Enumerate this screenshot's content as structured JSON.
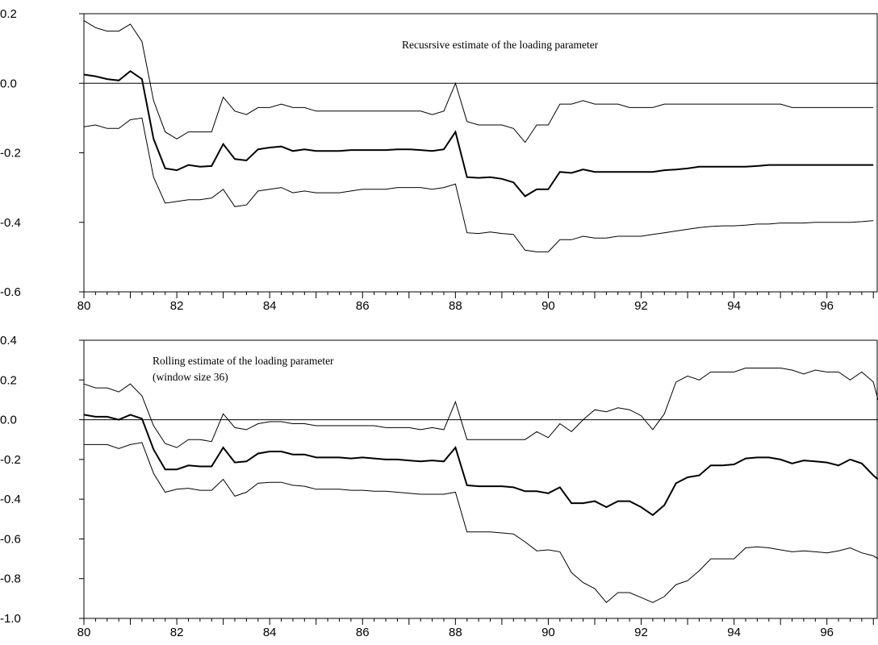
{
  "chart_data": [
    {
      "type": "line",
      "annotation_lines": [
        "Recusrsive estimate of the loading parameter"
      ],
      "xlim": [
        80,
        97.1
      ],
      "ylim": [
        -0.6,
        0.2
      ],
      "xticks": [
        "80",
        "82",
        "84",
        "86",
        "88",
        "90",
        "92",
        "94",
        "96"
      ],
      "yticks": [
        "0.2",
        "0.0",
        "-0.2",
        "-0.4",
        "-0.6"
      ],
      "reference_line": 0.0,
      "x": [
        80.0,
        80.25,
        80.5,
        80.75,
        81.0,
        81.25,
        81.5,
        81.75,
        82.0,
        82.25,
        82.5,
        82.75,
        83.0,
        83.25,
        83.5,
        83.75,
        84.0,
        84.25,
        84.5,
        84.75,
        85.0,
        85.25,
        85.5,
        85.75,
        86.0,
        86.25,
        86.5,
        86.75,
        87.0,
        87.25,
        87.5,
        87.75,
        88.0,
        88.25,
        88.5,
        88.75,
        89.0,
        89.25,
        89.5,
        89.75,
        90.0,
        90.25,
        90.5,
        90.75,
        91.0,
        91.25,
        91.5,
        91.75,
        92.0,
        92.25,
        92.5,
        92.75,
        93.0,
        93.25,
        93.5,
        93.75,
        94.0,
        94.25,
        94.5,
        94.75,
        95.0,
        95.25,
        95.5,
        95.75,
        96.0,
        96.25,
        96.5,
        96.75,
        97.0
      ],
      "series": [
        {
          "values": [
            0.18,
            0.16,
            0.15,
            0.15,
            0.17,
            0.12,
            -0.05,
            -0.14,
            -0.16,
            -0.14,
            -0.14,
            -0.14,
            -0.04,
            -0.08,
            -0.09,
            -0.07,
            -0.07,
            -0.06,
            -0.07,
            -0.07,
            -0.08,
            -0.08,
            -0.08,
            -0.08,
            -0.08,
            -0.08,
            -0.08,
            -0.08,
            -0.08,
            -0.08,
            -0.09,
            -0.08,
            0.0,
            -0.11,
            -0.12,
            -0.12,
            -0.12,
            -0.13,
            -0.17,
            -0.12,
            -0.12,
            -0.06,
            -0.06,
            -0.05,
            -0.06,
            -0.06,
            -0.06,
            -0.07,
            -0.07,
            -0.07,
            -0.06,
            -0.06,
            -0.06,
            -0.06,
            -0.06,
            -0.06,
            -0.06,
            -0.06,
            -0.06,
            -0.06,
            -0.06,
            -0.07,
            -0.07,
            -0.07,
            -0.07,
            -0.07,
            -0.07,
            -0.07,
            -0.07
          ],
          "width": 1.0
        },
        {
          "values": [
            0.025,
            0.02,
            0.012,
            0.008,
            0.035,
            0.012,
            -0.16,
            -0.245,
            -0.25,
            -0.235,
            -0.24,
            -0.238,
            -0.175,
            -0.218,
            -0.222,
            -0.19,
            -0.185,
            -0.182,
            -0.195,
            -0.19,
            -0.195,
            -0.195,
            -0.195,
            -0.192,
            -0.192,
            -0.192,
            -0.192,
            -0.19,
            -0.19,
            -0.192,
            -0.195,
            -0.19,
            -0.14,
            -0.27,
            -0.272,
            -0.27,
            -0.275,
            -0.285,
            -0.325,
            -0.305,
            -0.305,
            -0.255,
            -0.258,
            -0.248,
            -0.255,
            -0.255,
            -0.255,
            -0.255,
            -0.255,
            -0.255,
            -0.25,
            -0.248,
            -0.245,
            -0.24,
            -0.24,
            -0.24,
            -0.24,
            -0.24,
            -0.238,
            -0.235,
            -0.235,
            -0.235,
            -0.235,
            -0.235,
            -0.235,
            -0.235,
            -0.235,
            -0.235,
            -0.235
          ],
          "width": 2.0
        },
        {
          "values": [
            -0.125,
            -0.12,
            -0.13,
            -0.13,
            -0.105,
            -0.1,
            -0.27,
            -0.345,
            -0.34,
            -0.335,
            -0.335,
            -0.33,
            -0.305,
            -0.355,
            -0.35,
            -0.31,
            -0.305,
            -0.3,
            -0.315,
            -0.31,
            -0.315,
            -0.315,
            -0.315,
            -0.31,
            -0.305,
            -0.305,
            -0.305,
            -0.3,
            -0.3,
            -0.3,
            -0.305,
            -0.3,
            -0.29,
            -0.43,
            -0.432,
            -0.428,
            -0.432,
            -0.435,
            -0.48,
            -0.485,
            -0.485,
            -0.45,
            -0.45,
            -0.44,
            -0.445,
            -0.445,
            -0.44,
            -0.44,
            -0.44,
            -0.435,
            -0.43,
            -0.425,
            -0.42,
            -0.415,
            -0.412,
            -0.41,
            -0.41,
            -0.408,
            -0.405,
            -0.405,
            -0.402,
            -0.402,
            -0.402,
            -0.4,
            -0.4,
            -0.4,
            -0.4,
            -0.398,
            -0.395
          ],
          "width": 1.0
        }
      ]
    },
    {
      "type": "line",
      "annotation_lines": [
        "Rolling estimate of the loading parameter",
        "(window size 36)"
      ],
      "xlim": [
        80,
        97.1
      ],
      "ylim": [
        -1.0,
        0.4
      ],
      "xticks": [
        "80",
        "82",
        "84",
        "86",
        "88",
        "90",
        "92",
        "94",
        "96"
      ],
      "yticks": [
        "0.4",
        "0.2",
        "0.0",
        "-0.2",
        "-0.4",
        "-0.6",
        "-0.8",
        "-1.0"
      ],
      "reference_line": 0.0,
      "x": [
        80.0,
        80.25,
        80.5,
        80.75,
        81.0,
        81.25,
        81.5,
        81.75,
        82.0,
        82.25,
        82.5,
        82.75,
        83.0,
        83.25,
        83.5,
        83.75,
        84.0,
        84.25,
        84.5,
        84.75,
        85.0,
        85.25,
        85.5,
        85.75,
        86.0,
        86.25,
        86.5,
        86.75,
        87.0,
        87.25,
        87.5,
        87.75,
        88.0,
        88.25,
        88.5,
        88.75,
        89.0,
        89.25,
        89.5,
        89.75,
        90.0,
        90.25,
        90.5,
        90.75,
        91.0,
        91.25,
        91.5,
        91.75,
        92.0,
        92.25,
        92.5,
        92.75,
        93.0,
        93.25,
        93.5,
        93.75,
        94.0,
        94.25,
        94.5,
        94.75,
        95.0,
        95.25,
        95.5,
        95.75,
        96.0,
        96.25,
        96.5,
        96.75,
        97.0,
        97.1
      ],
      "series": [
        {
          "values": [
            0.18,
            0.16,
            0.16,
            0.14,
            0.18,
            0.12,
            -0.03,
            -0.12,
            -0.14,
            -0.1,
            -0.1,
            -0.11,
            0.03,
            -0.04,
            -0.05,
            -0.02,
            -0.01,
            -0.01,
            -0.02,
            -0.02,
            -0.03,
            -0.03,
            -0.03,
            -0.03,
            -0.03,
            -0.03,
            -0.04,
            -0.04,
            -0.04,
            -0.05,
            -0.04,
            -0.05,
            0.09,
            -0.1,
            -0.1,
            -0.1,
            -0.1,
            -0.1,
            -0.1,
            -0.06,
            -0.09,
            -0.02,
            -0.06,
            0.0,
            0.05,
            0.04,
            0.06,
            0.05,
            0.02,
            -0.05,
            0.03,
            0.19,
            0.22,
            0.2,
            0.24,
            0.24,
            0.24,
            0.26,
            0.26,
            0.26,
            0.26,
            0.25,
            0.23,
            0.25,
            0.24,
            0.24,
            0.2,
            0.24,
            0.19,
            0.1
          ],
          "width": 1.0
        },
        {
          "values": [
            0.025,
            0.015,
            0.015,
            0.0,
            0.025,
            0.005,
            -0.15,
            -0.25,
            -0.25,
            -0.23,
            -0.235,
            -0.235,
            -0.14,
            -0.215,
            -0.21,
            -0.17,
            -0.16,
            -0.16,
            -0.175,
            -0.175,
            -0.19,
            -0.19,
            -0.19,
            -0.195,
            -0.19,
            -0.195,
            -0.2,
            -0.2,
            -0.205,
            -0.21,
            -0.205,
            -0.21,
            -0.14,
            -0.33,
            -0.335,
            -0.335,
            -0.335,
            -0.34,
            -0.36,
            -0.36,
            -0.37,
            -0.34,
            -0.42,
            -0.42,
            -0.41,
            -0.44,
            -0.41,
            -0.41,
            -0.44,
            -0.48,
            -0.43,
            -0.32,
            -0.29,
            -0.28,
            -0.23,
            -0.23,
            -0.225,
            -0.195,
            -0.19,
            -0.19,
            -0.2,
            -0.22,
            -0.205,
            -0.21,
            -0.215,
            -0.23,
            -0.2,
            -0.22,
            -0.28,
            -0.3
          ],
          "width": 2.0
        },
        {
          "values": [
            -0.125,
            -0.125,
            -0.125,
            -0.145,
            -0.125,
            -0.115,
            -0.27,
            -0.365,
            -0.35,
            -0.345,
            -0.355,
            -0.355,
            -0.3,
            -0.385,
            -0.365,
            -0.32,
            -0.315,
            -0.315,
            -0.33,
            -0.335,
            -0.35,
            -0.35,
            -0.35,
            -0.355,
            -0.355,
            -0.36,
            -0.36,
            -0.365,
            -0.37,
            -0.375,
            -0.375,
            -0.375,
            -0.365,
            -0.565,
            -0.565,
            -0.565,
            -0.57,
            -0.575,
            -0.615,
            -0.66,
            -0.655,
            -0.665,
            -0.77,
            -0.82,
            -0.85,
            -0.92,
            -0.87,
            -0.87,
            -0.895,
            -0.92,
            -0.89,
            -0.83,
            -0.81,
            -0.76,
            -0.7,
            -0.7,
            -0.7,
            -0.645,
            -0.64,
            -0.645,
            -0.655,
            -0.665,
            -0.66,
            -0.665,
            -0.67,
            -0.66,
            -0.645,
            -0.67,
            -0.685,
            -0.7
          ],
          "width": 1.0
        }
      ]
    }
  ]
}
